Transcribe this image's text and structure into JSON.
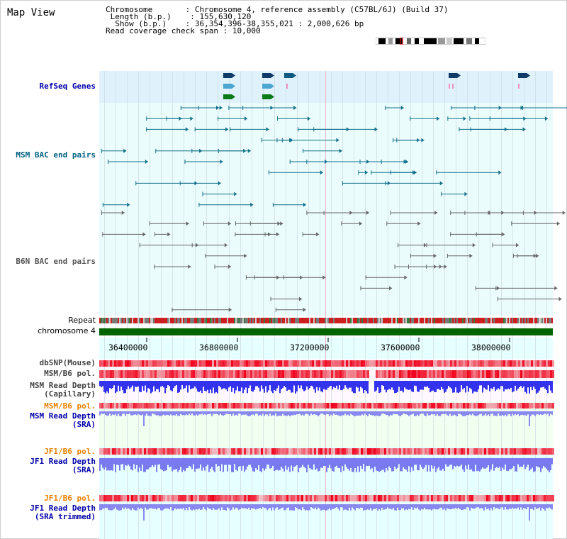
{
  "title": "Map View",
  "info": {
    "chromosome_key": "Chromosome",
    "chromosome_val": "Chromosome 4, reference assembly (C57BL/6J) (Build 37)",
    "length_key": "Length (b.p.)",
    "length_val": "155,630,120",
    "show_key": "Show (b.p.)",
    "show_val": "36,354,396-38,355,021 : 2,000,626 bp",
    "coverage_key": "Read coverage check span",
    "coverage_val": "10,000"
  },
  "tracks": {
    "refseq": "RefSeq Genes",
    "msm_bac": "MSM BAC end pairs",
    "b6n_bac": "B6N BAC end pairs",
    "repeat": "Repeat",
    "chromosome": "chromosome 4",
    "dbsnp": "dbSNP(Mouse)",
    "msm_b6_pol": "MSM/B6 pol.",
    "msm_depth_cap_1": "MSM Read Depth",
    "msm_depth_cap_2": "(Capillary)",
    "msm_b6_pol_2": "MSM/B6 pol.",
    "msm_depth_sra_1": "MSM Read Depth",
    "msm_depth_sra_2": "(SRA)",
    "jf1_b6_pol": "JF1/B6 pol.",
    "jf1_depth_sra_1": "JF1 Read Depth",
    "jf1_depth_sra_2": "(SRA)",
    "jf1_b6_pol_2": "JF1/B6 pol.",
    "jf1_depth_trim_1": "JF1 Read Depth",
    "jf1_depth_trim_2": "(SRA trimmed)"
  },
  "axis": {
    "ticks": [
      "36400000",
      "36800000",
      "37200000",
      "37600000",
      "38000000"
    ]
  },
  "colors": {
    "refseq_label": "#0000aa",
    "msm_bac_label": "#006080",
    "b6n_bac_label": "#555555",
    "pol_orange": "#e88000",
    "depth_blue": "#0000aa",
    "chromosome_green": "#006400"
  }
}
